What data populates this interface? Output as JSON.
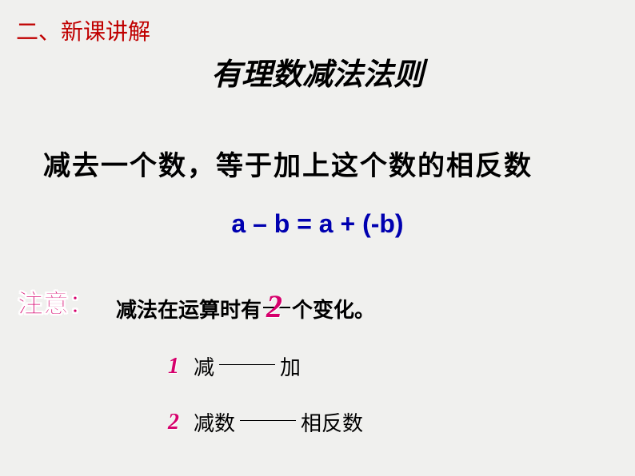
{
  "section_header": "二、新课讲解",
  "title": "有理数减法法则",
  "rule_text": "减去一个数，等于加上这个数的相反数",
  "formula": "a – b  = a  + (-b)",
  "note": {
    "label": "注意：",
    "text_before": "减法在运算时有",
    "number": "2",
    "text_after": "个变化。"
  },
  "changes": [
    {
      "num": "1",
      "from": "减",
      "to": "加"
    },
    {
      "num": "2",
      "from": "减数",
      "to": "相反数"
    }
  ],
  "colors": {
    "background": "#f0f0ee",
    "header_red": "#c00000",
    "formula_blue": "#0000b0",
    "accent_pink": "#d6006c",
    "text_black": "#000000"
  }
}
